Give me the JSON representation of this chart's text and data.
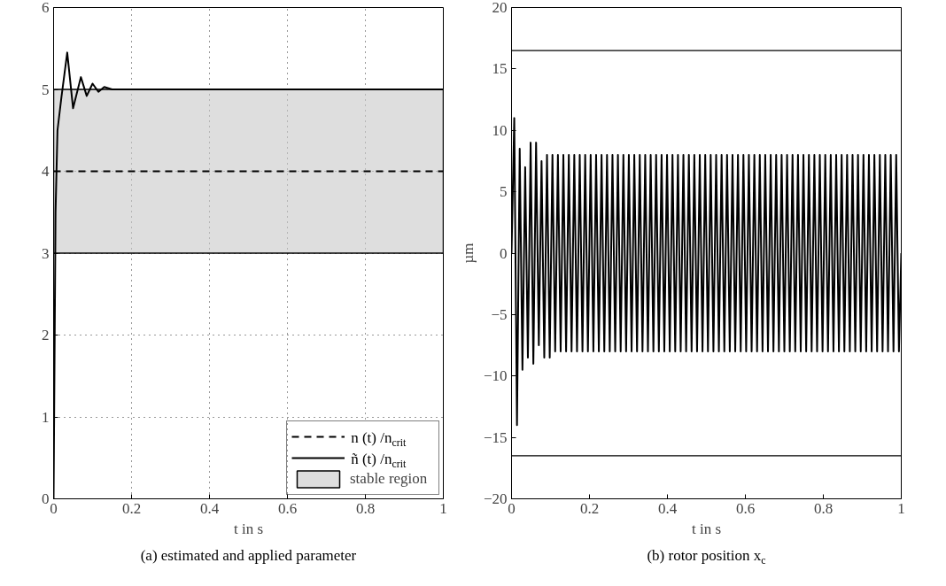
{
  "chart_data": [
    {
      "type": "line",
      "title": "(a) estimated and applied parameter",
      "xlabel": "t in s",
      "xlim": [
        0,
        1
      ],
      "xticks": [
        0,
        0.2,
        0.4,
        0.6,
        0.8,
        1
      ],
      "ylim": [
        0,
        6
      ],
      "yticks": [
        0,
        1,
        2,
        3,
        4,
        5,
        6
      ],
      "grid": true,
      "legend": "bottom right",
      "series": [
        {
          "name": "n (t) /n$_{crit}$",
          "color": "#000000",
          "line_style": "dashed",
          "x": [
            0,
            0.5,
            1
          ],
          "values": [
            4,
            4,
            4
          ]
        },
        {
          "name": "ñ (t) /n$_{crit}$",
          "color": "#000000",
          "line_style": "solid",
          "x": [
            0,
            0.005,
            0.01,
            0.02,
            0.035,
            0.05,
            0.07,
            0.085,
            0.1,
            0.115,
            0.13,
            0.15,
            0.2,
            1
          ],
          "values": [
            0,
            3.5,
            4.5,
            4.9,
            5.45,
            4.77,
            5.15,
            4.92,
            5.07,
            4.97,
            5.03,
            5,
            5,
            5
          ]
        }
      ],
      "bands": [
        {
          "axis": "y",
          "from": 3,
          "to": 5,
          "label": "stable region",
          "color": "#c8c8c8"
        }
      ]
    },
    {
      "type": "line",
      "title": "(b) rotor position x$_{c}$",
      "xlabel": "t in s",
      "ylabel": "µm",
      "xlim": [
        0,
        1
      ],
      "xticks": [
        0,
        0.2,
        0.4,
        0.6,
        0.8,
        1
      ],
      "ylim": [
        -20,
        20
      ],
      "yticks": [
        -20,
        -15,
        -10,
        -5,
        0,
        5,
        10,
        15,
        20
      ],
      "grid": false,
      "legend": false,
      "series": [
        {
          "color": "#000000",
          "line_style": "solid",
          "x": [
            0,
            0.007,
            0.014,
            0.021,
            0.028,
            0.035,
            0.042,
            0.049,
            0.056,
            0.063,
            0.07,
            0.077,
            0.084,
            0.091,
            0.098,
            0.105,
            0.112,
            0.119,
            0.126,
            0.133,
            0.14,
            0.147,
            0.154,
            0.161,
            0.168,
            0.175,
            0.182,
            0.189,
            0.196,
            0.203,
            0.21,
            0.217,
            0.224,
            0.231,
            0.238,
            0.245,
            0.252,
            0.259,
            0.266,
            0.273,
            0.28,
            0.287,
            0.294,
            0.301,
            0.308,
            0.315,
            0.322,
            0.329,
            0.336,
            0.343,
            0.35,
            0.357,
            0.364,
            0.371,
            0.378,
            0.385,
            0.392,
            0.399,
            0.406,
            0.413,
            0.42,
            0.427,
            0.434,
            0.441,
            0.448,
            0.455,
            0.462,
            0.469,
            0.476,
            0.483,
            0.49,
            0.497,
            0.504,
            0.511,
            0.518,
            0.525,
            0.532,
            0.539,
            0.546,
            0.553,
            0.56,
            0.567,
            0.574,
            0.581,
            0.588,
            0.595,
            0.602,
            0.609,
            0.616,
            0.623,
            0.63,
            0.637,
            0.644,
            0.651,
            0.658,
            0.665,
            0.672,
            0.679,
            0.686,
            0.693,
            0.7,
            0.707,
            0.714,
            0.721,
            0.728,
            0.735,
            0.742,
            0.749,
            0.756,
            0.763,
            0.77,
            0.777,
            0.784,
            0.791,
            0.798,
            0.805,
            0.812,
            0.819,
            0.826,
            0.833,
            0.84,
            0.847,
            0.854,
            0.861,
            0.868,
            0.875,
            0.882,
            0.889,
            0.896,
            0.903,
            0.91,
            0.917,
            0.924,
            0.931,
            0.938,
            0.945,
            0.952,
            0.959,
            0.966,
            0.973,
            0.98,
            0.987,
            0.994,
            1.0
          ],
          "values": [
            0,
            11,
            -14,
            8.5,
            -9.5,
            7,
            -8.5,
            9,
            -9,
            9,
            -7.5,
            7.5,
            -8.5,
            8,
            -8.5,
            8,
            -8,
            8,
            -8,
            8,
            -8,
            8,
            -8,
            8,
            -8,
            8,
            -8,
            8,
            -8,
            8,
            -8,
            8,
            -8,
            8,
            -8,
            8,
            -8,
            8,
            -8,
            8,
            -8,
            8,
            -8,
            8,
            -8,
            8,
            -8,
            8,
            -8,
            8,
            -8,
            8,
            -8,
            8,
            -8,
            8,
            -8,
            8,
            -8,
            8,
            -8,
            8,
            -8,
            8,
            -8,
            8,
            -8,
            8,
            -8,
            8,
            -8,
            8,
            -8,
            8,
            -8,
            8,
            -8,
            8,
            -8,
            8,
            -8,
            8,
            -8,
            8,
            -8,
            8,
            -8,
            8,
            -8,
            8,
            -8,
            8,
            -8,
            8,
            -8,
            8,
            -8,
            8,
            -8,
            8,
            -8,
            8,
            -8,
            8,
            -8,
            8,
            -8,
            8,
            -8,
            8,
            -8,
            8,
            -8,
            8,
            -8,
            8,
            -8,
            8,
            -8,
            8,
            -8,
            8,
            -8,
            8,
            -8,
            8,
            -8,
            8,
            -8,
            8,
            -8,
            8,
            -8,
            8,
            -8,
            8,
            -8,
            8,
            -8,
            8,
            -8,
            8,
            -8,
            0
          ]
        }
      ],
      "ref_lines": [
        {
          "axis": "y",
          "value": 16.5,
          "color": "#000000"
        },
        {
          "axis": "y",
          "value": -16.5,
          "color": "#000000"
        }
      ]
    }
  ]
}
